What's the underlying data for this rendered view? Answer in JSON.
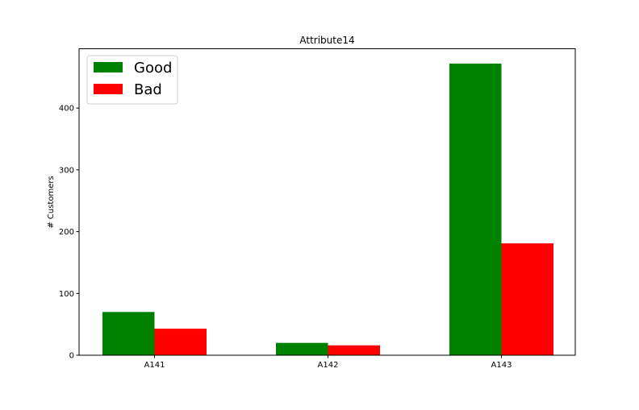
{
  "chart_data": {
    "type": "bar",
    "title": "Attribute14",
    "xlabel": "",
    "ylabel": "# Customers",
    "categories": [
      "A141",
      "A142",
      "A143"
    ],
    "series": [
      {
        "name": "Good",
        "color": "#008000",
        "values": [
          70,
          20,
          472
        ]
      },
      {
        "name": "Bad",
        "color": "#ff0000",
        "values": [
          43,
          16,
          181
        ]
      }
    ],
    "ylim": [
      0,
      496
    ],
    "yticks": [
      0,
      100,
      200,
      300,
      400
    ],
    "legend_position": "top-left",
    "grid": false
  }
}
